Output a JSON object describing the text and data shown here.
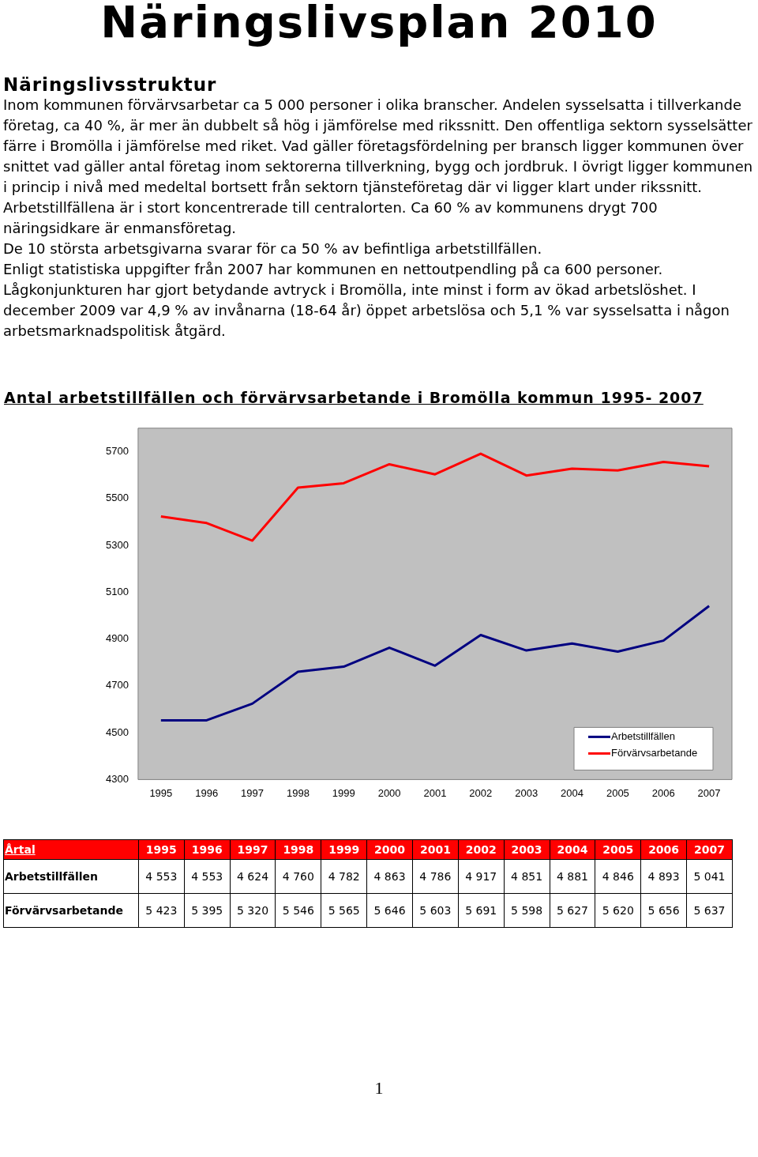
{
  "chart_data": {
    "type": "line",
    "title": "Näringslivsplan 2010",
    "subtitle": "Antal arbetstillfällen och förvärvsarbetande i Bromölla kommun 1995- 2007",
    "annotations": [
      "Näringslivsstruktur",
      "Inom kommunen förvärvsarbetar ca 5 000 personer i olika branscher. Andelen sysselsatta i tillverkande företag, ca 40 %, är mer än dubbelt så hög i jämförelse med rikssnitt. Den offentliga sektorn sysselsätter färre i Bromölla i jämförelse med riket. Vad gäller företagsfördelning per bransch ligger kommunen över snittet vad gäller antal företag inom sektorerna tillverkning, bygg och jordbruk. I övrigt ligger kommunen i princip i nivå med medeltal bortsett från sektorn tjänsteföretag där vi ligger klart under rikssnitt.",
      "Arbetstillfällena är i stort koncentrerade till centralorten. Ca 60 % av kommunens drygt 700 näringsidkare är enmansföretag.",
      "De 10 största arbetsgivarna svarar för ca 50 % av befintliga arbetstillfällen.",
      "Enligt statistiska uppgifter från 2007 har kommunen en nettoutpendling på ca 600 personer.",
      "Lågkonjunkturen har gjort betydande avtryck i Bromölla, inte minst i form av ökad arbetslöshet. I december 2009 var 4,9 % av invånarna (18-64 år) öppet arbetslösa och 5,1 % var sysselsatta i någon arbetsmarknadspolitisk åtgärd.",
      "Årtal",
      "1"
    ],
    "categories": [
      "1995",
      "1996",
      "1997",
      "1998",
      "1999",
      "2000",
      "2001",
      "2002",
      "2003",
      "2004",
      "2005",
      "2006",
      "2007"
    ],
    "series": [
      {
        "name": "Arbetstillfällen",
        "color": "#000080",
        "values": [
          4553,
          4553,
          4624,
          4760,
          4782,
          4863,
          4786,
          4917,
          4851,
          4881,
          4846,
          4893,
          5041
        ],
        "value_labels": [
          "4 553",
          "4 553",
          "4 624",
          "4 760",
          "4 782",
          "4 863",
          "4 786",
          "4 917",
          "4 851",
          "4 881",
          "4 846",
          "4 893",
          "5 041"
        ]
      },
      {
        "name": "Förvärvsarbetande",
        "color": "#ff0000",
        "values": [
          5423,
          5395,
          5320,
          5546,
          5565,
          5646,
          5603,
          5691,
          5598,
          5627,
          5620,
          5656,
          5637
        ],
        "value_labels": [
          "5 423",
          "5 395",
          "5 320",
          "5 546",
          "5 565",
          "5 646",
          "5 603",
          "5 691",
          "5 598",
          "5 627",
          "5 620",
          "5 656",
          "5 637"
        ]
      }
    ],
    "ylim": [
      4300,
      5800
    ],
    "yticks": [
      4300,
      4500,
      4700,
      4900,
      5100,
      5300,
      5500,
      5700
    ],
    "grid": false,
    "legend": "bottom right",
    "marker": "none",
    "line_style": "solid",
    "data_labels": true
  }
}
